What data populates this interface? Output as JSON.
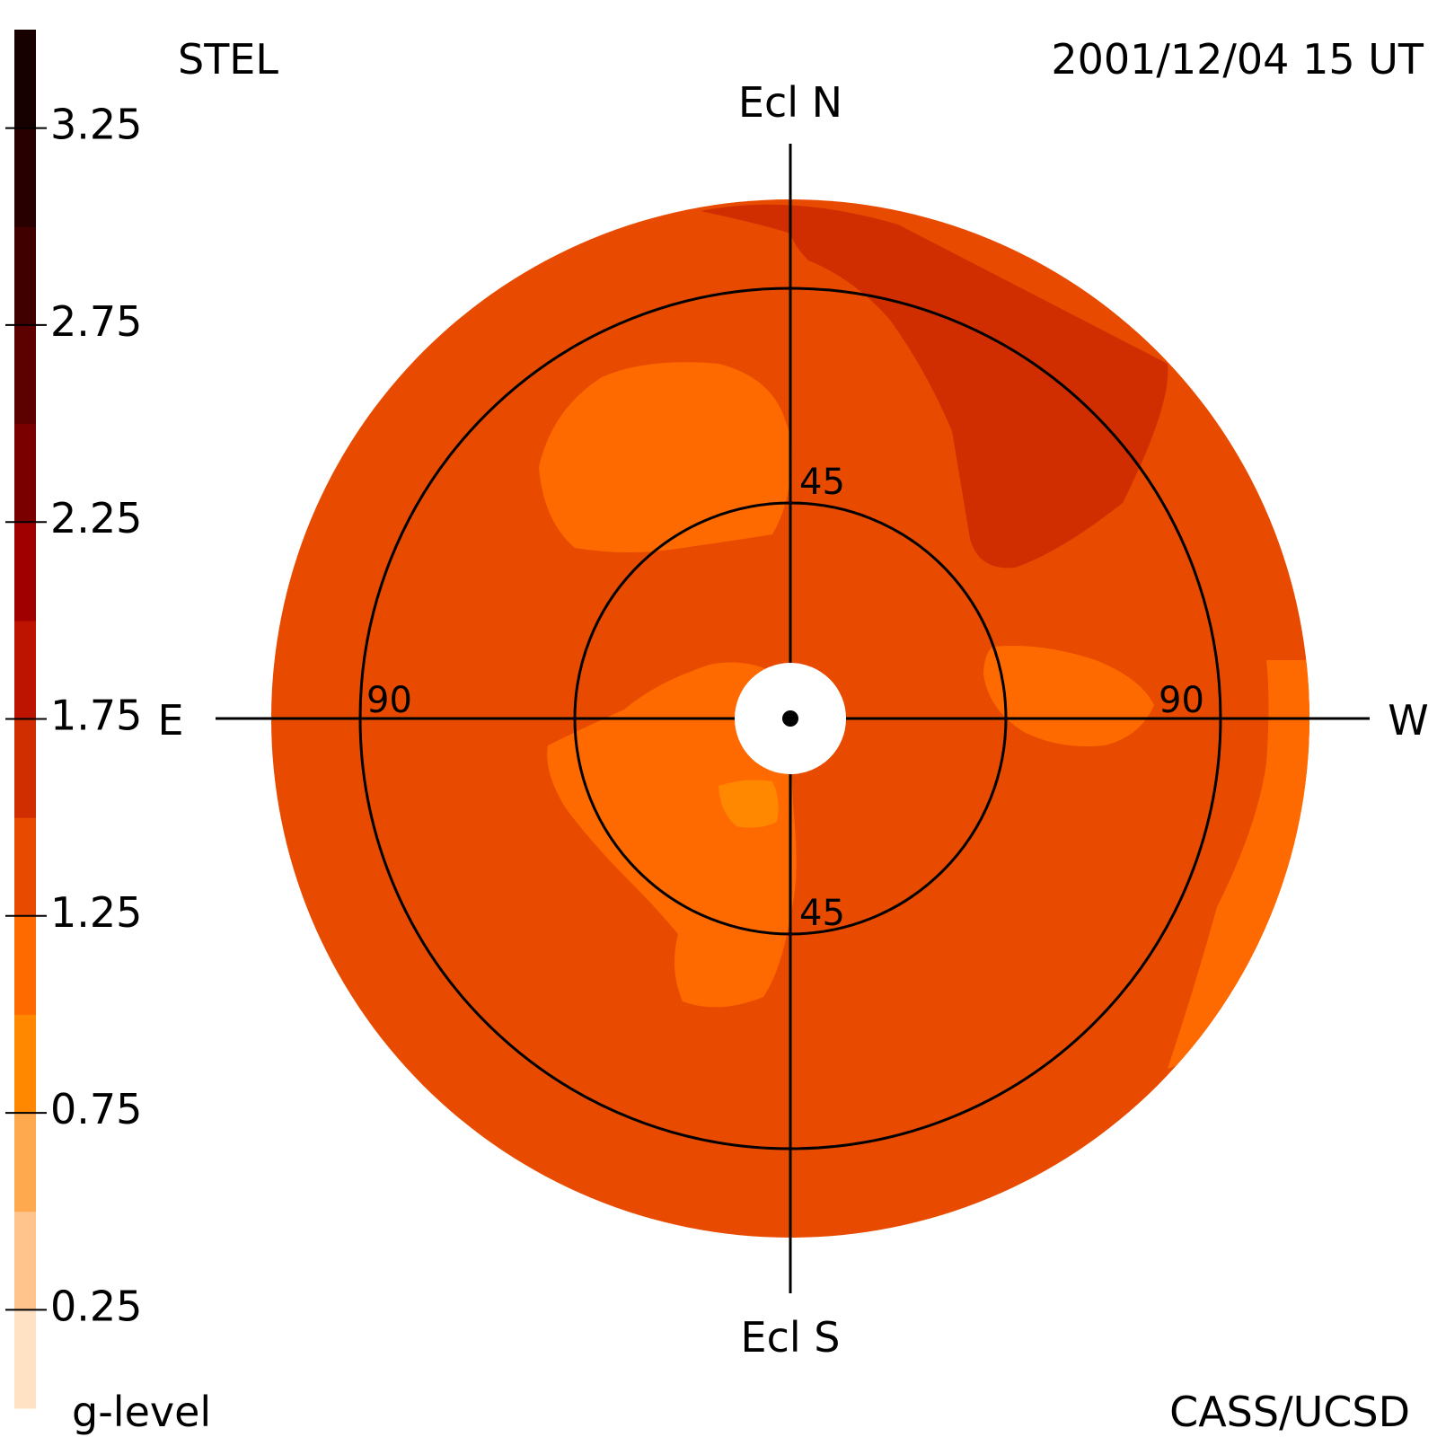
{
  "header": {
    "instrument": "STEL",
    "timestamp": "2001/12/04 15 UT",
    "credit": "CASS/UCSD"
  },
  "chart_data": {
    "type": "heatmap",
    "projection": "fisheye sky map centred on the Sun",
    "directions": {
      "north": "Ecl N",
      "south": "Ecl S",
      "east": "E",
      "west": "W"
    },
    "ring_labels": {
      "inner_north": "45",
      "inner_south": "45",
      "outer_east": "90",
      "outer_west": "90"
    },
    "rings_deg": [
      45,
      90
    ],
    "colorbar": {
      "label": "g-level",
      "range": [
        0,
        3.5
      ],
      "tick_values": [
        0.25,
        0.75,
        1.25,
        1.75,
        2.25,
        2.75,
        3.25
      ],
      "tick_labels": [
        "0.25",
        "0.75",
        "1.25",
        "1.75",
        "2.25",
        "2.75",
        "3.25"
      ],
      "bands": [
        {
          "from": 0.0,
          "to": 0.25,
          "color": "#ffe2c4"
        },
        {
          "from": 0.25,
          "to": 0.5,
          "color": "#ffc48c"
        },
        {
          "from": 0.5,
          "to": 0.75,
          "color": "#ffa94e"
        },
        {
          "from": 0.75,
          "to": 1.0,
          "color": "#ff8800"
        },
        {
          "from": 1.0,
          "to": 1.25,
          "color": "#ff6a00"
        },
        {
          "from": 1.25,
          "to": 1.5,
          "color": "#e84b00"
        },
        {
          "from": 1.5,
          "to": 1.75,
          "color": "#d02e00"
        },
        {
          "from": 1.75,
          "to": 2.0,
          "color": "#bc1400"
        },
        {
          "from": 2.0,
          "to": 2.25,
          "color": "#a00000"
        },
        {
          "from": 2.25,
          "to": 2.5,
          "color": "#7a0000"
        },
        {
          "from": 2.5,
          "to": 2.75,
          "color": "#5c0000"
        },
        {
          "from": 2.75,
          "to": 3.0,
          "color": "#400000"
        },
        {
          "from": 3.0,
          "to": 3.25,
          "color": "#280000"
        },
        {
          "from": 3.25,
          "to": 3.5,
          "color": "#160000"
        }
      ]
    },
    "background_level": 1.3,
    "regions": [
      {
        "name": "ne-enhanced-region",
        "level": 1.6,
        "color": "#d02e00"
      },
      {
        "name": "nw-low-lobe",
        "level": 1.1,
        "color": "#ff6a00"
      },
      {
        "name": "center-low-lobe",
        "level": 1.1,
        "color": "#ff6a00"
      },
      {
        "name": "center-lowest-patch",
        "level": 0.9,
        "color": "#ff8800"
      },
      {
        "name": "s-low-lobe",
        "level": 1.1,
        "color": "#ff6a00"
      },
      {
        "name": "e-low-lobe",
        "level": 1.1,
        "color": "#ff6a00"
      },
      {
        "name": "west-rim-low-band",
        "level": 1.1,
        "color": "#ff6a00"
      }
    ]
  }
}
